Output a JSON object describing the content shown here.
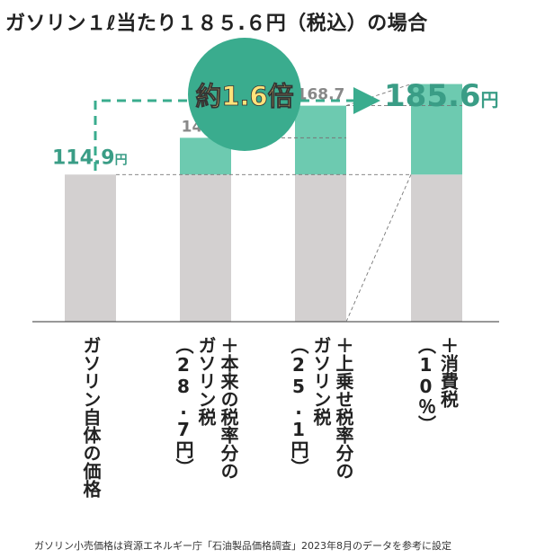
{
  "title": "ガソリン１ℓ当たり１８５.６円（税込）の場合",
  "chart_data": {
    "type": "bar",
    "stacked": true,
    "ylim": [
      0,
      200
    ],
    "unit": "円",
    "colors": {
      "base": "#d3d0d0",
      "added": "#6dcab0",
      "label_green": "#3a9d86",
      "label_gray": "#888888",
      "circle": "#3aac8e",
      "arrow": "#3aac8e"
    },
    "categories": [
      {
        "lines": [
          "ガソリン自体の価格"
        ]
      },
      {
        "lines": [
          "＋本来の税率分の",
          "ガソリン税",
          "（28.7円）"
        ]
      },
      {
        "lines": [
          "＋上乗せ税率分の",
          "ガソリン税",
          "（25.1円）"
        ],
        "red_line": 2
      },
      {
        "lines": [
          "＋消費税",
          "（10％）"
        ]
      }
    ],
    "series": [
      {
        "values": [
          114.9,
          114.9,
          114.9,
          114.9
        ]
      },
      {
        "values": [
          0,
          28.7,
          53.8,
          70.7
        ]
      }
    ],
    "totals": [
      "114.9",
      "143.6",
      "168.7",
      "185.6"
    ],
    "annotation": {
      "ratio": "約1.6倍"
    }
  },
  "footnote": "ガソリン小売価格は資源エネルギー庁「石油製品価格調査」2023年8月のデータを参考に設定"
}
